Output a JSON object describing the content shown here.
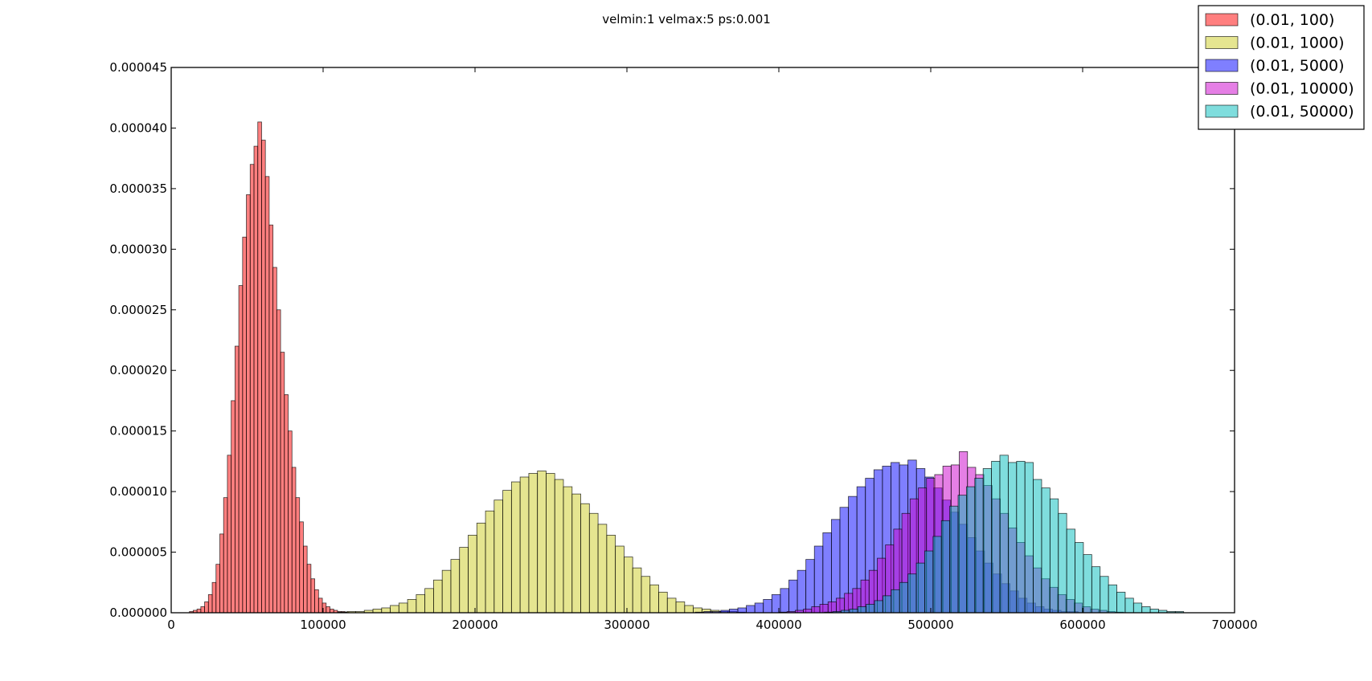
{
  "chart_data": {
    "type": "bar",
    "title": "velmin:1 velmax:5 ps:0.001",
    "xlabel": "",
    "ylabel": "",
    "xlim": [
      0,
      700000
    ],
    "ylim": [
      0,
      4.5e-05
    ],
    "x_ticks": [
      "0",
      "100000",
      "200000",
      "300000",
      "400000",
      "500000",
      "600000",
      "700000"
    ],
    "y_ticks": [
      "0.000000",
      "0.000005",
      "0.000010",
      "0.000015",
      "0.000020",
      "0.000025",
      "0.000030",
      "0.000035",
      "0.000040",
      "0.000045"
    ],
    "legend_position": "top-right",
    "grid": false,
    "series": [
      {
        "name": "(0.01, 100)",
        "color": "#ff0000",
        "bin_start": 12000,
        "bin_width": 2500,
        "values": [
          1e-07,
          2e-07,
          3e-07,
          5e-07,
          9e-07,
          1.5e-06,
          2.5e-06,
          4e-06,
          6.5e-06,
          9.5e-06,
          1.3e-05,
          1.75e-05,
          2.2e-05,
          2.7e-05,
          3.1e-05,
          3.45e-05,
          3.7e-05,
          3.85e-05,
          4.05e-05,
          3.9e-05,
          3.6e-05,
          3.2e-05,
          2.85e-05,
          2.5e-05,
          2.15e-05,
          1.8e-05,
          1.5e-05,
          1.2e-05,
          9.5e-06,
          7.5e-06,
          5.5e-06,
          4e-06,
          2.8e-06,
          1.9e-06,
          1.2e-06,
          8e-07,
          5e-07,
          3e-07,
          2e-07,
          1e-07,
          1e-07,
          5e-08
        ]
      },
      {
        "name": "(0.01, 1000)",
        "color": "#cccc22",
        "bin_start": 110000,
        "bin_width": 5700,
        "values": [
          5e-08,
          1e-07,
          1e-07,
          2e-07,
          3e-07,
          4e-07,
          6e-07,
          8e-07,
          1.1e-06,
          1.5e-06,
          2e-06,
          2.7e-06,
          3.5e-06,
          4.4e-06,
          5.4e-06,
          6.4e-06,
          7.4e-06,
          8.4e-06,
          9.3e-06,
          1.01e-05,
          1.08e-05,
          1.12e-05,
          1.15e-05,
          1.17e-05,
          1.15e-05,
          1.1e-05,
          1.04e-05,
          9.8e-06,
          9e-06,
          8.2e-06,
          7.3e-06,
          6.4e-06,
          5.5e-06,
          4.6e-06,
          3.7e-06,
          3e-06,
          2.3e-06,
          1.7e-06,
          1.2e-06,
          9e-07,
          6e-07,
          4e-07,
          3e-07,
          2e-07,
          1e-07,
          1e-07,
          5e-08
        ]
      },
      {
        "name": "(0.01, 5000)",
        "color": "#0000ff",
        "bin_start": 345000,
        "bin_width": 5600,
        "values": [
          5e-08,
          1e-07,
          1e-07,
          2e-07,
          3e-07,
          4e-07,
          6e-07,
          8e-07,
          1.1e-06,
          1.5e-06,
          2e-06,
          2.7e-06,
          3.5e-06,
          4.4e-06,
          5.5e-06,
          6.6e-06,
          7.7e-06,
          8.7e-06,
          9.6e-06,
          1.04e-05,
          1.11e-05,
          1.18e-05,
          1.21e-05,
          1.24e-05,
          1.22e-05,
          1.26e-05,
          1.19e-05,
          1.12e-05,
          1.03e-05,
          9.3e-06,
          8.3e-06,
          7.3e-06,
          6.2e-06,
          5.1e-06,
          4.1e-06,
          3.2e-06,
          2.4e-06,
          1.8e-06,
          1.2e-06,
          8e-07,
          5e-07,
          3e-07,
          2e-07,
          1e-07,
          1e-07
        ]
      },
      {
        "name": "(0.01, 10000)",
        "color": "#cc00cc",
        "bin_start": 400000,
        "bin_width": 5400,
        "values": [
          5e-08,
          1e-07,
          2e-07,
          3e-07,
          5e-07,
          7e-07,
          9e-07,
          1.2e-06,
          1.6e-06,
          2e-06,
          2.7e-06,
          3.5e-06,
          4.5e-06,
          5.6e-06,
          6.9e-06,
          8.2e-06,
          9.4e-06,
          1.03e-05,
          1.11e-05,
          1.14e-05,
          1.21e-05,
          1.22e-05,
          1.33e-05,
          1.2e-05,
          1.14e-05,
          1.05e-05,
          9.4e-06,
          8.2e-06,
          7e-06,
          5.8e-06,
          4.7e-06,
          3.7e-06,
          2.8e-06,
          2.1e-06,
          1.5e-06,
          1.1e-06,
          8e-07,
          5e-07,
          3e-07,
          2e-07,
          1e-07,
          5e-08
        ]
      },
      {
        "name": "(0.01, 50000)",
        "color": "#00bbbb",
        "bin_start": 430000,
        "bin_width": 5500,
        "values": [
          5e-08,
          1e-07,
          2e-07,
          3e-07,
          5e-07,
          7e-07,
          1e-06,
          1.4e-06,
          1.9e-06,
          2.5e-06,
          3.2e-06,
          4.1e-06,
          5.1e-06,
          6.3e-06,
          7.6e-06,
          8.8e-06,
          9.7e-06,
          1.04e-05,
          1.11e-05,
          1.19e-05,
          1.25e-05,
          1.3e-05,
          1.24e-05,
          1.25e-05,
          1.24e-05,
          1.1e-05,
          1.03e-05,
          9.4e-06,
          8.2e-06,
          6.9e-06,
          5.8e-06,
          4.8e-06,
          3.8e-06,
          3e-06,
          2.3e-06,
          1.7e-06,
          1.2e-06,
          8e-07,
          5e-07,
          3e-07,
          2e-07,
          1e-07,
          1e-07
        ]
      }
    ]
  }
}
